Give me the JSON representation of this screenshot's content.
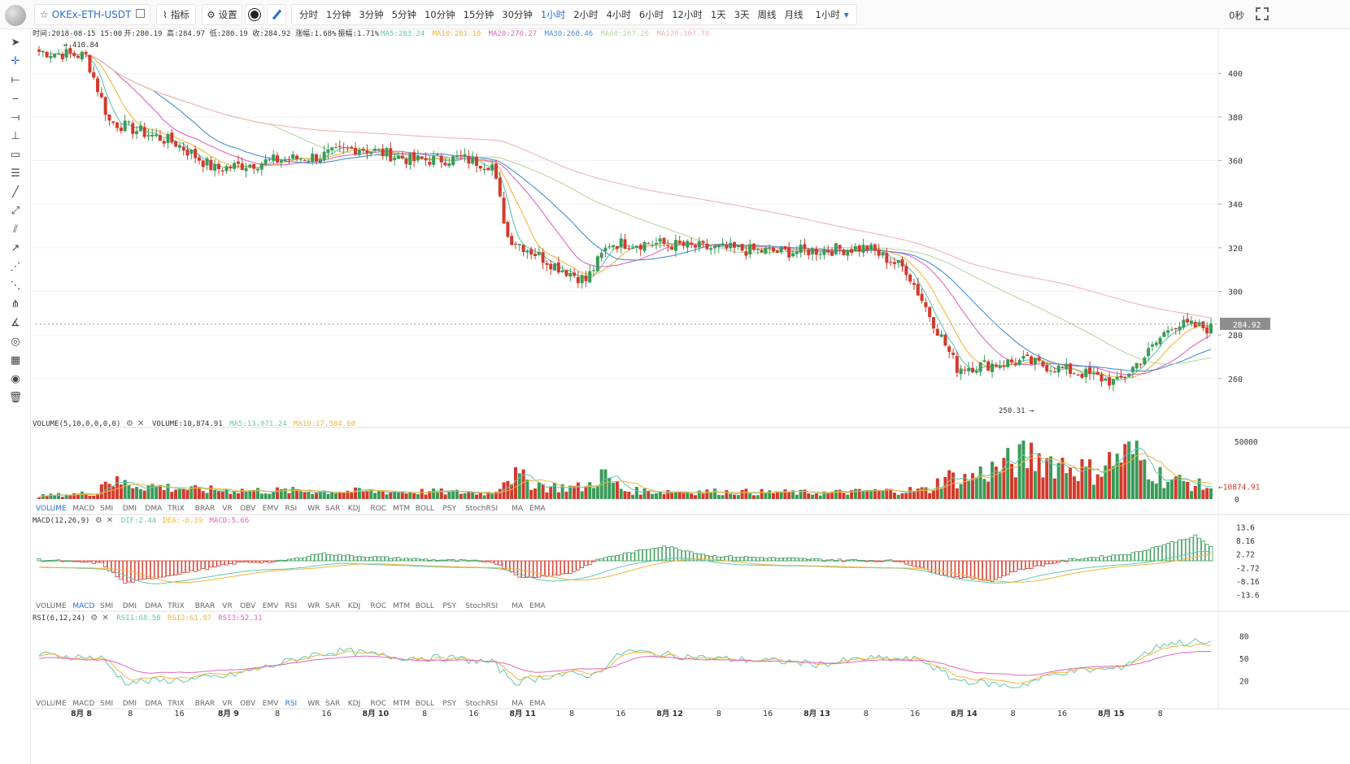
{
  "toolbar": {
    "symbol": "OKEx-ETH-USDT",
    "indicators_label": "指标",
    "settings_label": "设置",
    "periods": [
      "分时",
      "1分钟",
      "3分钟",
      "5分钟",
      "10分钟",
      "15分钟",
      "30分钟",
      "1小时",
      "2小时",
      "4小时",
      "6小时",
      "12小时",
      "1天",
      "3天",
      "周线",
      "月线"
    ],
    "active_period": "1小时",
    "period_dropdown": "1小时",
    "seconds_label": "0秒"
  },
  "tools": [
    "cursor-arrow-icon",
    "crosshair-icon",
    "horizontal-segment-icon",
    "horizontal-line-icon",
    "horizontal-ray-icon",
    "vertical-line-icon",
    "price-label-icon",
    "parallel-lines-icon",
    "trend-line-icon",
    "ray-line-icon",
    "parallel-channel-icon",
    "arrow-line-icon",
    "fib-fan-icon",
    "gann-fan-icon",
    "pitchfork-icon",
    "speed-lines-icon",
    "fib-spiral-icon",
    "measure-icon",
    "visibility-icon",
    "delete-icon"
  ],
  "info_bar": {
    "time": "时间:2018-08-15 15:00",
    "open": "开:280.19",
    "high": "高:284.97",
    "low": "低:280.19",
    "close": "收:284.92",
    "change": "涨幅:1.68%",
    "amplitude": "振幅:1.71%",
    "ma5": "MA5:283.24",
    "ma10": "MA10:281.10",
    "ma20": "MA20:270.27",
    "ma30": "MA30:268.46",
    "ma60": "MA60:287.26",
    "ma120": "MA120:307.70"
  },
  "volume_header": {
    "label": "VOLUME(5,10,0,0,0,0)",
    "value": "VOLUME:10,874.91",
    "ma5": "MA5:13,071.24",
    "ma10": "MA10:17,584.60"
  },
  "macd_header": {
    "label": "MACD(12,26,9)",
    "dif": "DIF:2.44",
    "dea": "DEA:-0.39",
    "macd": "MACD:5.66"
  },
  "rsi_header": {
    "label": "RSI(6,12,24)",
    "rsi1": "RSI1:68.58",
    "rsi2": "RSI2:61.97",
    "rsi3": "RSI3:52.31"
  },
  "indicator_tabs": [
    "VOLUME",
    "MACD",
    "SMI",
    "DMI",
    "DMA",
    "TRIX",
    "BRAR",
    "VR",
    "OBV",
    "EMV",
    "RSI",
    "WR",
    "SAR",
    "KDJ",
    "ROC",
    "MTM",
    "BOLL",
    "PSY",
    "StochRSI",
    "MA",
    "EMA"
  ],
  "indicator_tab_active": [
    "VOLUME",
    "MACD",
    "RSI"
  ],
  "colors": {
    "up": "#3a9b59",
    "down": "#d33a2c",
    "ma5": "#5fc8b0",
    "ma10": "#f2b53a",
    "ma20": "#e066c0",
    "ma30": "#4a8fd0",
    "ma60": "#b8d8a0",
    "ma120": "#f0b6b6",
    "dif": "#5fc8b0",
    "dea": "#f2b53a",
    "rsi1": "#5fc8b0",
    "rsi2": "#f2b53a",
    "rsi3": "#e066c0"
  },
  "chart_data": {
    "type": "candlestick",
    "title": "OKEx-ETH-USDT 1小时",
    "price_axis": {
      "ticks": [
        260,
        280,
        300,
        320,
        340,
        360,
        380,
        400
      ],
      "range": [
        245,
        412
      ]
    },
    "last_price": "284.92",
    "max_label": "410.84",
    "min_label": "250.31",
    "time_axis": [
      "8月 8",
      "8",
      "16",
      "8月 9",
      "8",
      "16",
      "8月 10",
      "8",
      "16",
      "8月 11",
      "8",
      "16",
      "8月 12",
      "8",
      "16",
      "8月 13",
      "8",
      "16",
      "8月 14",
      "8",
      "16",
      "8月 15",
      "8"
    ],
    "price_keypoints": [
      [
        0,
        410
      ],
      [
        12,
        408
      ],
      [
        18,
        378
      ],
      [
        35,
        368
      ],
      [
        45,
        356
      ],
      [
        60,
        360
      ],
      [
        72,
        362
      ],
      [
        82,
        366
      ],
      [
        96,
        360
      ],
      [
        108,
        361
      ],
      [
        116,
        358
      ],
      [
        120,
        325
      ],
      [
        132,
        312
      ],
      [
        140,
        305
      ],
      [
        146,
        322
      ],
      [
        158,
        322
      ],
      [
        170,
        320
      ],
      [
        190,
        318
      ],
      [
        212,
        320
      ],
      [
        222,
        310
      ],
      [
        235,
        265
      ],
      [
        252,
        268
      ],
      [
        268,
        262
      ],
      [
        276,
        258
      ],
      [
        284,
        272
      ],
      [
        290,
        285
      ],
      [
        300,
        283
      ]
    ],
    "volume_axis": {
      "ticks": [
        0,
        50000
      ],
      "last_value": "10874.91"
    },
    "volume_keypoints": [
      [
        0,
        3000
      ],
      [
        15,
        6000
      ],
      [
        17,
        22000
      ],
      [
        19,
        16000
      ],
      [
        40,
        9000
      ],
      [
        60,
        8000
      ],
      [
        100,
        7000
      ],
      [
        116,
        6000
      ],
      [
        120,
        24000
      ],
      [
        130,
        12000
      ],
      [
        140,
        11000
      ],
      [
        144,
        24000
      ],
      [
        150,
        8000
      ],
      [
        200,
        6000
      ],
      [
        228,
        9000
      ],
      [
        232,
        22000
      ],
      [
        236,
        18000
      ],
      [
        250,
        36000
      ],
      [
        254,
        42000
      ],
      [
        270,
        26000
      ],
      [
        276,
        40000
      ],
      [
        280,
        44000
      ],
      [
        288,
        20000
      ],
      [
        296,
        14000
      ],
      [
        300,
        11000
      ]
    ],
    "macd_axis": {
      "ticks": [
        13.6,
        8.16,
        2.72,
        -2.72,
        -8.16,
        -13.6
      ]
    },
    "macd_keypoints": [
      [
        0,
        0.5
      ],
      [
        16,
        -1
      ],
      [
        22,
        -9
      ],
      [
        40,
        -4
      ],
      [
        52,
        -0.5
      ],
      [
        60,
        -0.5
      ],
      [
        66,
        1
      ],
      [
        72,
        3
      ],
      [
        80,
        2
      ],
      [
        100,
        0.5
      ],
      [
        116,
        -0.3
      ],
      [
        124,
        -7
      ],
      [
        136,
        -5
      ],
      [
        144,
        1
      ],
      [
        160,
        6
      ],
      [
        172,
        2
      ],
      [
        200,
        0.5
      ],
      [
        220,
        0
      ],
      [
        232,
        -6
      ],
      [
        244,
        -8
      ],
      [
        250,
        -4
      ],
      [
        264,
        0.5
      ],
      [
        280,
        3
      ],
      [
        296,
        10
      ],
      [
        300,
        5.66
      ]
    ],
    "rsi_axis": {
      "ticks": [
        20,
        50,
        80
      ]
    },
    "rsi_keypoints": [
      [
        0,
        55
      ],
      [
        16,
        50
      ],
      [
        22,
        18
      ],
      [
        40,
        22
      ],
      [
        48,
        26
      ],
      [
        58,
        38
      ],
      [
        70,
        55
      ],
      [
        78,
        60
      ],
      [
        90,
        52
      ],
      [
        106,
        50
      ],
      [
        116,
        44
      ],
      [
        122,
        18
      ],
      [
        132,
        28
      ],
      [
        142,
        28
      ],
      [
        150,
        60
      ],
      [
        158,
        56
      ],
      [
        172,
        50
      ],
      [
        190,
        46
      ],
      [
        200,
        42
      ],
      [
        212,
        50
      ],
      [
        226,
        48
      ],
      [
        234,
        22
      ],
      [
        250,
        12
      ],
      [
        262,
        32
      ],
      [
        276,
        36
      ],
      [
        288,
        70
      ],
      [
        296,
        72
      ],
      [
        300,
        68.58
      ]
    ]
  }
}
